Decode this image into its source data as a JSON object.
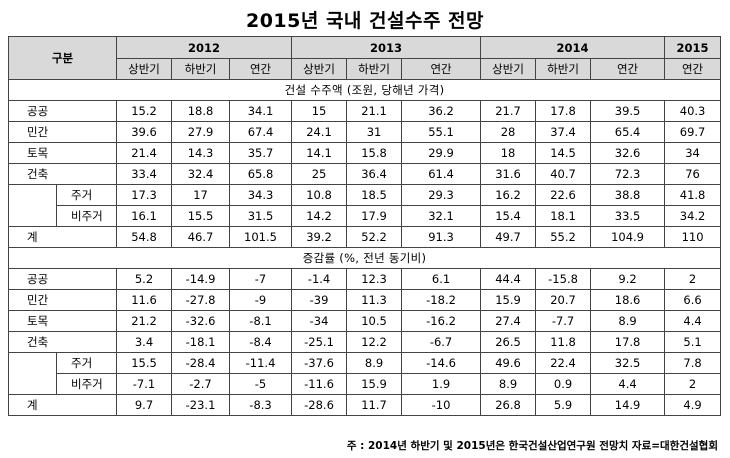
{
  "title": "2015년 국내 건설수주 전망",
  "header": {
    "category": "구분",
    "years": [
      "2012",
      "2013",
      "2014",
      "2015"
    ],
    "half1": "상반기",
    "half2": "하반기",
    "annual": "연간"
  },
  "section1": {
    "title": "건설 수주액 (조원, 당해년 가격)",
    "rows": [
      {
        "label": "공공",
        "vals": [
          "15.2",
          "18.8",
          "34.1",
          "15",
          "21.1",
          "36.2",
          "21.7",
          "17.8",
          "39.5",
          "40.3"
        ]
      },
      {
        "label": "민간",
        "vals": [
          "39.6",
          "27.9",
          "67.4",
          "24.1",
          "31",
          "55.1",
          "28",
          "37.4",
          "65.4",
          "69.7"
        ]
      },
      {
        "label": "토목",
        "vals": [
          "21.4",
          "14.3",
          "35.7",
          "14.1",
          "15.8",
          "29.9",
          "18",
          "14.5",
          "32.6",
          "34"
        ]
      },
      {
        "label": "건축",
        "vals": [
          "33.4",
          "32.4",
          "65.8",
          "25",
          "36.4",
          "61.4",
          "31.6",
          "40.7",
          "72.3",
          "76"
        ]
      },
      {
        "label": "주거",
        "vals": [
          "17.3",
          "17",
          "34.3",
          "10.8",
          "18.5",
          "29.3",
          "16.2",
          "22.6",
          "38.8",
          "41.8"
        ]
      },
      {
        "label": "비주거",
        "vals": [
          "16.1",
          "15.5",
          "31.5",
          "14.2",
          "17.9",
          "32.1",
          "15.4",
          "18.1",
          "33.5",
          "34.2"
        ]
      },
      {
        "label": "계",
        "vals": [
          "54.8",
          "46.7",
          "101.5",
          "39.2",
          "52.2",
          "91.3",
          "49.7",
          "55.2",
          "104.9",
          "110"
        ]
      }
    ]
  },
  "section2": {
    "title": "증감률 (%, 전년 동기비)",
    "rows": [
      {
        "label": "공공",
        "vals": [
          "5.2",
          "-14.9",
          "-7",
          "-1.4",
          "12.3",
          "6.1",
          "44.4",
          "-15.8",
          "9.2",
          "2"
        ]
      },
      {
        "label": "민간",
        "vals": [
          "11.6",
          "-27.8",
          "-9",
          "-39",
          "11.3",
          "-18.2",
          "15.9",
          "20.7",
          "18.6",
          "6.6"
        ]
      },
      {
        "label": "토목",
        "vals": [
          "21.2",
          "-32.6",
          "-8.1",
          "-34",
          "10.5",
          "-16.2",
          "27.4",
          "-7.7",
          "8.9",
          "4.4"
        ]
      },
      {
        "label": "건축",
        "vals": [
          "3.4",
          "-18.1",
          "-8.4",
          "-25.1",
          "12.2",
          "-6.7",
          "26.5",
          "11.8",
          "17.8",
          "5.1"
        ]
      },
      {
        "label": "주거",
        "vals": [
          "15.5",
          "-28.4",
          "-11.4",
          "-37.6",
          "8.9",
          "-14.6",
          "49.6",
          "22.4",
          "32.5",
          "7.8"
        ]
      },
      {
        "label": "비주거",
        "vals": [
          "-7.1",
          "-2.7",
          "-5",
          "-11.6",
          "15.9",
          "1.9",
          "8.9",
          "0.9",
          "4.4",
          "2"
        ]
      },
      {
        "label": "계",
        "vals": [
          "9.7",
          "-23.1",
          "-8.3",
          "-28.6",
          "11.7",
          "-10",
          "26.8",
          "5.9",
          "14.9",
          "4.9"
        ]
      }
    ]
  },
  "note": "주 : 2014년 하반기 및 2015년은 한국건설산업연구원 전망치 자료=대한건설협회"
}
